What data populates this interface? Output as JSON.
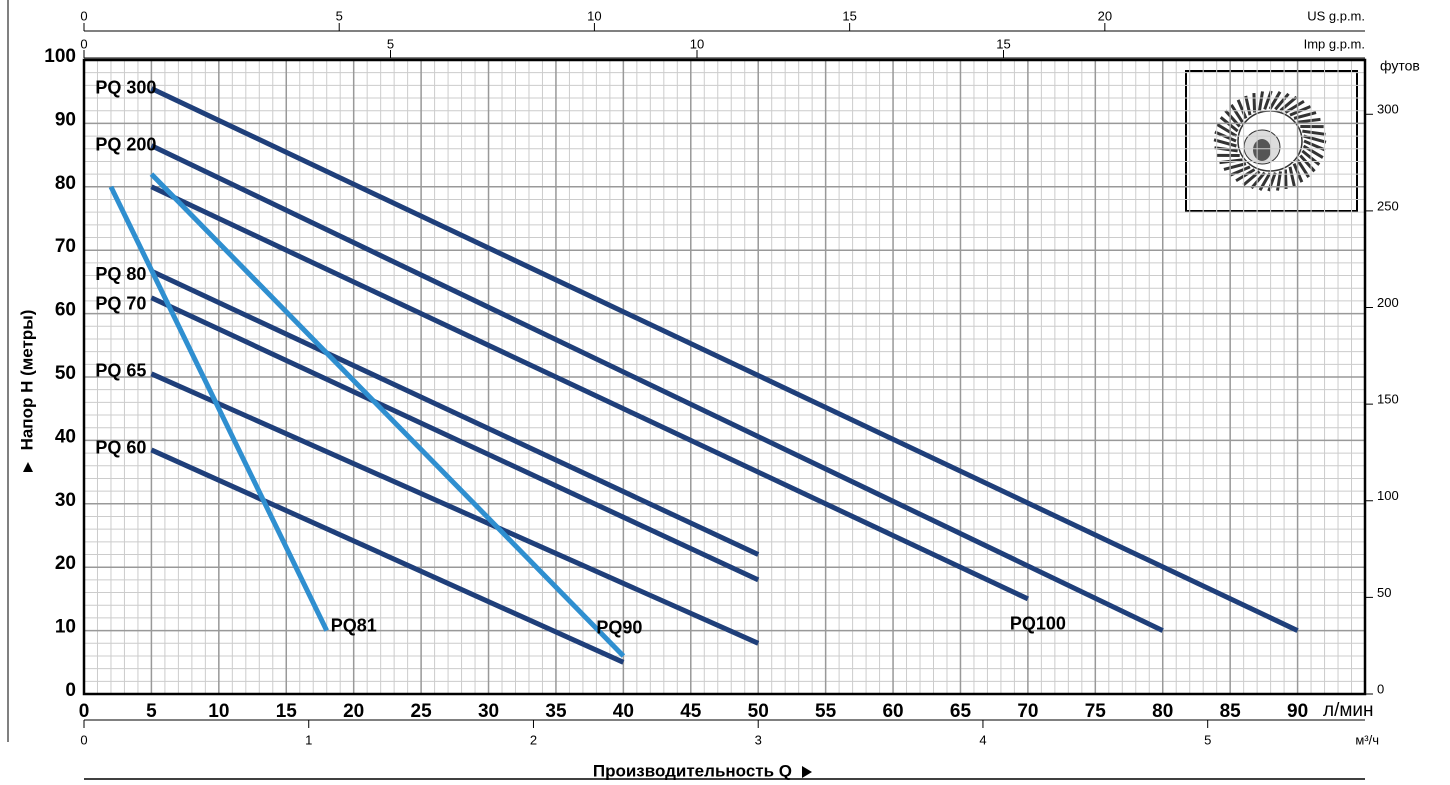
{
  "chart_data": {
    "type": "line",
    "ylabel": "Напор H (метры)",
    "xlabel": "Производительность Q",
    "xunit": "л/мин",
    "xlim": [
      0,
      95
    ],
    "xticks": [
      0,
      5,
      10,
      15,
      20,
      25,
      30,
      35,
      40,
      45,
      50,
      55,
      60,
      65,
      70,
      75,
      80,
      85,
      90
    ],
    "ylim": [
      0,
      100
    ],
    "yticks": [
      0,
      10,
      20,
      30,
      40,
      50,
      60,
      70,
      80,
      90,
      100
    ],
    "y2label": "футов",
    "y2lim": [
      0,
      328.084
    ],
    "y2ticks": [
      0,
      50,
      100,
      150,
      200,
      250,
      300
    ],
    "grid": true,
    "minor_grid": {
      "x": 1,
      "y": 2
    },
    "secondary_x_axes": [
      {
        "label": "US g.p.m.",
        "position": "top",
        "lim": [
          0,
          25.097
        ],
        "ticks": [
          0,
          5,
          10,
          15,
          20
        ]
      },
      {
        "label": "Imp g.p.m.",
        "position": "top",
        "lim": [
          0,
          20.897
        ],
        "ticks": [
          0,
          5,
          10,
          15
        ]
      },
      {
        "label": "м³/ч",
        "position": "bottom",
        "lim": [
          0,
          5.7
        ],
        "ticks": [
          0,
          1,
          2,
          3,
          4,
          5
        ]
      }
    ],
    "series": [
      {
        "name": "PQ 300",
        "color": "#1f3f7a",
        "x": [
          5,
          90
        ],
        "values": [
          95.5,
          10
        ]
      },
      {
        "name": "PQ 200",
        "color": "#1f3f7a",
        "x": [
          5,
          80
        ],
        "values": [
          86.5,
          10
        ]
      },
      {
        "name": "PQ100",
        "color": "#1f3f7a",
        "x": [
          5,
          70
        ],
        "values": [
          80,
          15
        ]
      },
      {
        "name": "PQ 80",
        "color": "#1f3f7a",
        "x": [
          5,
          50
        ],
        "values": [
          66.7,
          22
        ]
      },
      {
        "name": "PQ 70",
        "color": "#1f3f7a",
        "x": [
          5,
          50
        ],
        "values": [
          62.5,
          18
        ]
      },
      {
        "name": "PQ 65",
        "color": "#1f3f7a",
        "x": [
          5,
          50
        ],
        "values": [
          50.5,
          8
        ]
      },
      {
        "name": "PQ 60",
        "color": "#1f3f7a",
        "x": [
          5,
          40
        ],
        "values": [
          38.5,
          5
        ]
      },
      {
        "name": "PQ81",
        "color": "#2f8fd0",
        "x": [
          2,
          18
        ],
        "values": [
          80,
          10
        ]
      },
      {
        "name": "PQ90",
        "color": "#2f8fd0",
        "x": [
          5,
          40
        ],
        "values": [
          82,
          6
        ]
      }
    ]
  }
}
